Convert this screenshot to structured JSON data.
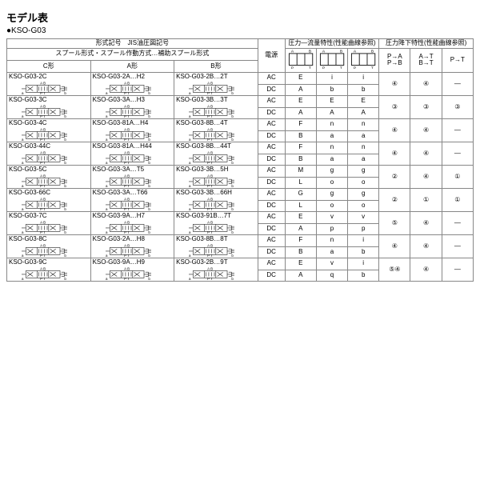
{
  "title": "モデル表",
  "subtitle": "●KSO-G03",
  "header": {
    "model_jis": "形式記号　JIS油圧図記号",
    "spool": "スプール形式・スプール作動方式…補助スプール形式",
    "c": "C形",
    "a": "A形",
    "b": "B形",
    "power": "電源",
    "pflow": "圧力―流量特性(性能曲線参照)",
    "pdrop": "圧力降下特性(性能曲線参照)",
    "pa": "P→A",
    "pb": "P→B",
    "at": "A→T",
    "bt": "B→T",
    "pt": "P→T"
  },
  "rows": [
    {
      "c": "KSO-G03-2C",
      "a": "KSO-G03-2A…H2",
      "b": "KSO-G03-2B…2T",
      "ac": {
        "v1": "E",
        "v2": "i",
        "v3": "i"
      },
      "dc": {
        "v1": "A",
        "v2": "b",
        "v3": "b"
      },
      "pa": "④",
      "at": "④",
      "pt": "—"
    },
    {
      "c": "KSO-G03-3C",
      "a": "KSO-G03-3A…H3",
      "b": "KSO-G03-3B…3T",
      "ac": {
        "v1": "E",
        "v2": "E",
        "v3": "E"
      },
      "dc": {
        "v1": "A",
        "v2": "A",
        "v3": "A"
      },
      "pa": "③",
      "at": "③",
      "pt": "③"
    },
    {
      "c": "KSO-G03-4C",
      "a": "KSO-G03-81A…H4",
      "b": "KSO-G03-8B…4T",
      "ac": {
        "v1": "F",
        "v2": "n",
        "v3": "n"
      },
      "dc": {
        "v1": "B",
        "v2": "a",
        "v3": "a"
      },
      "pa": "④",
      "at": "④",
      "pt": "—"
    },
    {
      "c": "KSO-G03-44C",
      "a": "KSO-G03-81A…H44",
      "b": "KSO-G03-8B…44T",
      "ac": {
        "v1": "F",
        "v2": "n",
        "v3": "n"
      },
      "dc": {
        "v1": "B",
        "v2": "a",
        "v3": "a"
      },
      "pa": "④",
      "at": "④",
      "pt": "—"
    },
    {
      "c": "KSO-G03-5C",
      "a": "KSO-G03-3A…T5",
      "b": "KSO-G03-3B…5H",
      "ac": {
        "v1": "M",
        "v2": "g",
        "v3": "g"
      },
      "dc": {
        "v1": "L",
        "v2": "o",
        "v3": "o"
      },
      "pa": "②",
      "at": "④",
      "pt": "①"
    },
    {
      "c": "KSO-G03-66C",
      "a": "KSO-G03-3A…T66",
      "b": "KSO-G03-3B…66H",
      "ac": {
        "v1": "G",
        "v2": "g",
        "v3": "g"
      },
      "dc": {
        "v1": "L",
        "v2": "o",
        "v3": "o"
      },
      "pa": "②",
      "at": "①",
      "pt": "①"
    },
    {
      "c": "KSO-G03-7C",
      "a": "KSO-G03-9A…H7",
      "b": "KSO-G03-91B…7T",
      "ac": {
        "v1": "E",
        "v2": "v",
        "v3": "v"
      },
      "dc": {
        "v1": "A",
        "v2": "p",
        "v3": "p"
      },
      "pa": "⑤",
      "at": "④",
      "pt": "—"
    },
    {
      "c": "KSO-G03-8C",
      "a": "KSO-G03-2A…H8",
      "b": "KSO-G03-8B…8T",
      "ac": {
        "v1": "F",
        "v2": "n",
        "v3": "i"
      },
      "dc": {
        "v1": "B",
        "v2": "a",
        "v3": "b"
      },
      "pa": "④",
      "at": "④",
      "pt": "—"
    },
    {
      "c": "KSO-G03-9C",
      "a": "KSO-G03-9A…H9",
      "b": "KSO-G03-2B…9T",
      "ac": {
        "v1": "E",
        "v2": "v",
        "v3": "i"
      },
      "dc": {
        "v1": "A",
        "v2": "q",
        "v3": "b"
      },
      "pa": "⑤④",
      "at": "④",
      "pt": "—"
    }
  ],
  "colors": {
    "border": "#888888",
    "text": "#222222"
  }
}
